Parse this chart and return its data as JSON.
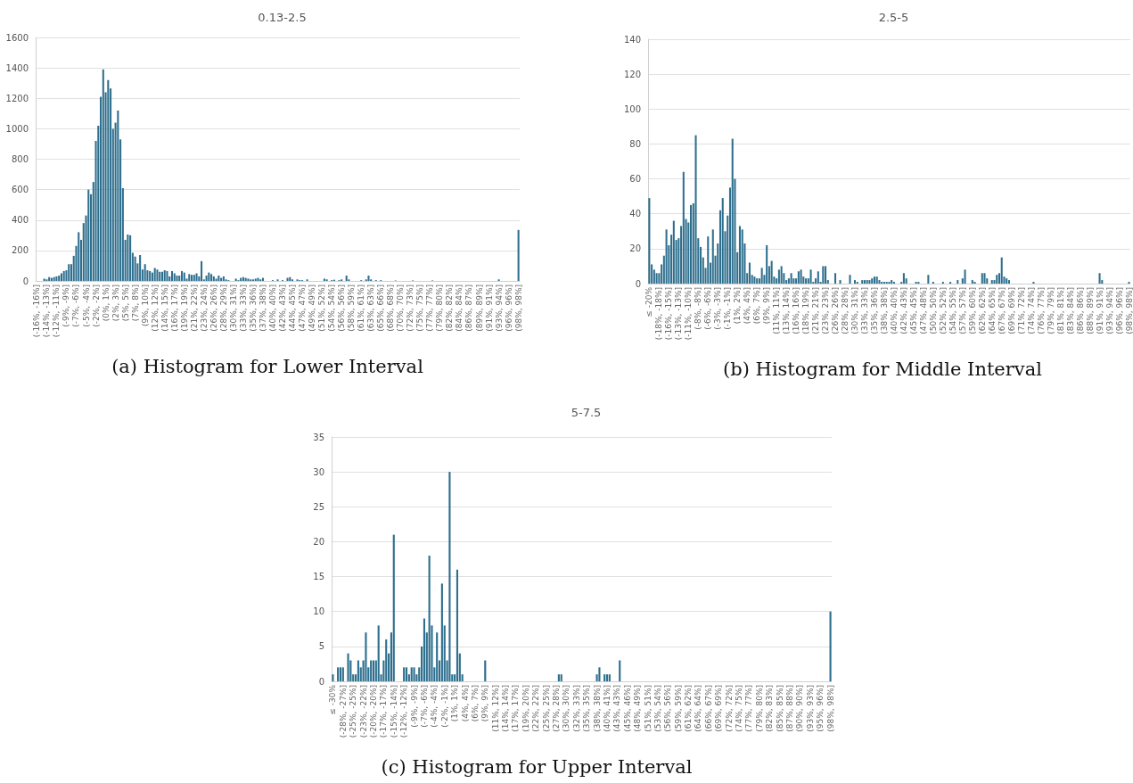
{
  "chart_data": [
    {
      "type": "bar",
      "title": "0.13-2.5",
      "annotations": [
        "(a) Histogram for Lower Interval"
      ],
      "color": "#2e6f8e",
      "ylim": [
        0,
        1600
      ],
      "yticks": [
        0,
        200,
        400,
        600,
        800,
        1000,
        1200,
        1400,
        1600
      ],
      "grid": "y",
      "categories": [
        "(-16%, -16%]",
        null,
        null,
        null,
        "(-14%, -13%]",
        null,
        null,
        null,
        "(-12%, -11%]",
        null,
        null,
        null,
        "(-9%, -9%]",
        null,
        null,
        null,
        "(-7%, -6%]",
        null,
        null,
        null,
        "(-5%, -4%]",
        null,
        null,
        null,
        "(-2%, -2%]",
        null,
        null,
        null,
        "(0%, 1%]",
        null,
        null,
        null,
        "(2%, 3%]",
        null,
        null,
        null,
        "(5%, 5%]",
        null,
        null,
        null,
        "(7%, 8%]",
        null,
        null,
        null,
        "(9%, 10%]",
        null,
        null,
        null,
        "(12%, 12%]",
        null,
        null,
        null,
        "(14%, 15%]",
        null,
        null,
        null,
        "(16%, 17%]",
        null,
        null,
        null,
        "(19%, 19%]",
        null,
        null,
        null,
        "(21%, 22%]",
        null,
        null,
        null,
        "(23%, 24%]",
        null,
        null,
        null,
        "(26%, 26%]",
        null,
        null,
        null,
        "(28%, 29%]",
        null,
        null,
        null,
        "(30%, 31%]",
        null,
        null,
        null,
        "(33%, 33%]",
        null,
        null,
        null,
        "(35%, 36%]",
        null,
        null,
        null,
        "(37%, 38%]",
        null,
        null,
        null,
        "(40%, 40%]",
        null,
        null,
        null,
        "(42%, 43%]",
        null,
        null,
        null,
        "(44%, 45%]",
        null,
        null,
        null,
        "(47%, 47%]",
        null,
        null,
        null,
        "(49%, 49%]",
        null,
        null,
        null,
        "(51%, 52%]",
        null,
        null,
        null,
        "(54%, 54%]",
        null,
        null,
        null,
        "(56%, 56%]",
        null,
        null,
        null,
        "(58%, 59%]",
        null,
        null,
        null,
        "(61%, 61%]",
        null,
        null,
        null,
        "(63%, 63%]",
        null,
        null,
        null,
        "(65%, 66%]",
        null,
        null,
        null,
        "(68%, 68%]",
        null,
        null,
        null,
        "(70%, 70%]",
        null,
        null,
        null,
        "(72%, 73%]",
        null,
        null,
        null,
        "(75%, 75%]",
        null,
        null,
        null,
        "(77%, 77%]",
        null,
        null,
        null,
        "(79%, 80%]",
        null,
        null,
        null,
        "(82%, 82%]",
        null,
        null,
        null,
        "(84%, 84%]",
        null,
        null,
        null,
        "(86%, 87%]",
        null,
        null,
        null,
        "(89%, 89%]",
        null,
        null,
        null,
        "(91%, 91%]",
        null,
        null,
        null,
        "(93%, 94%]",
        null,
        null,
        null,
        "(96%, 96%]",
        null,
        null,
        null,
        "(98%, 98%]"
      ],
      "values": [
        0,
        0,
        0,
        15,
        10,
        25,
        20,
        25,
        30,
        35,
        50,
        65,
        70,
        110,
        110,
        165,
        230,
        320,
        270,
        380,
        430,
        600,
        570,
        650,
        920,
        1020,
        1210,
        1390,
        1240,
        1320,
        1265,
        1000,
        1040,
        1120,
        930,
        610,
        270,
        305,
        300,
        185,
        160,
        115,
        170,
        75,
        110,
        70,
        65,
        55,
        85,
        75,
        60,
        60,
        70,
        65,
        30,
        65,
        50,
        35,
        35,
        65,
        55,
        15,
        45,
        40,
        40,
        50,
        30,
        130,
        10,
        35,
        55,
        45,
        30,
        15,
        35,
        20,
        30,
        10,
        5,
        0,
        0,
        15,
        5,
        20,
        25,
        20,
        15,
        10,
        10,
        15,
        20,
        10,
        20,
        0,
        0,
        0,
        5,
        0,
        10,
        0,
        5,
        0,
        20,
        25,
        10,
        0,
        10,
        5,
        5,
        0,
        10,
        0,
        0,
        0,
        0,
        0,
        0,
        15,
        10,
        0,
        5,
        8,
        0,
        5,
        10,
        0,
        35,
        10,
        0,
        0,
        0,
        0,
        5,
        0,
        10,
        35,
        10,
        0,
        5,
        0,
        5,
        0,
        0,
        0,
        0,
        0,
        3,
        0,
        0,
        0,
        0,
        0,
        0,
        3,
        0,
        0,
        0,
        0,
        0,
        0,
        0,
        3,
        0,
        0,
        0,
        0,
        0,
        0,
        0,
        0,
        0,
        0,
        0,
        0,
        0,
        0,
        0,
        0,
        0,
        0,
        0,
        0,
        0,
        0,
        0,
        0,
        0,
        0,
        10,
        0,
        0,
        0,
        0,
        0,
        0,
        0,
        335
      ]
    },
    {
      "type": "bar",
      "title": "2.5-5",
      "annotations": [
        "(b) Histogram for Middle Interval"
      ],
      "color": "#2e6f8e",
      "ylim": [
        0,
        140
      ],
      "yticks": [
        0,
        20,
        40,
        60,
        80,
        100,
        120,
        140
      ],
      "grid": "y",
      "categories": [
        "≤ -20%",
        null,
        null,
        null,
        "(-18%, -18%]",
        null,
        null,
        null,
        "(-16%, -15%]",
        null,
        null,
        null,
        "(-13%, -13%]",
        null,
        null,
        null,
        "(-11%, -10%]",
        null,
        null,
        null,
        "(-8%, -8%]",
        null,
        null,
        null,
        "(-6%, -6%]",
        null,
        null,
        null,
        "(-3%, -3%]",
        null,
        null,
        null,
        "(-1%, -1%]",
        null,
        null,
        null,
        "(1%, 2%]",
        null,
        null,
        null,
        "(4%, 4%]",
        null,
        null,
        null,
        "(6%, 7%]",
        null,
        null,
        null,
        "(9%, 9%]",
        null,
        null,
        null,
        "(11%, 11%]",
        null,
        null,
        null,
        "(13%, 14%]",
        null,
        null,
        null,
        "(16%, 16%]",
        null,
        null,
        null,
        "(18%, 19%]",
        null,
        null,
        null,
        "(21%, 21%]",
        null,
        null,
        null,
        "(23%, 23%]",
        null,
        null,
        null,
        "(26%, 26%]",
        null,
        null,
        null,
        "(28%, 28%]",
        null,
        null,
        null,
        "(30%, 31%]",
        null,
        null,
        null,
        "(33%, 33%]",
        null,
        null,
        null,
        "(35%, 36%]",
        null,
        null,
        null,
        "(38%, 38%]",
        null,
        null,
        null,
        "(40%, 40%]",
        null,
        null,
        null,
        "(42%, 43%]",
        null,
        null,
        null,
        "(45%, 45%]",
        null,
        null,
        null,
        "(47%, 48%]",
        null,
        null,
        null,
        "(50%, 50%]",
        null,
        null,
        null,
        "(52%, 52%]",
        null,
        null,
        null,
        "(54%, 55%]",
        null,
        null,
        null,
        "(57%, 57%]",
        null,
        null,
        null,
        "(59%, 60%]",
        null,
        null,
        null,
        "(62%, 62%]",
        null,
        null,
        null,
        "(64%, 65%]",
        null,
        null,
        null,
        "(67%, 67%]",
        null,
        null,
        null,
        "(69%, 69%]",
        null,
        null,
        null,
        "(71%, 72%]",
        null,
        null,
        null,
        "(74%, 74%]",
        null,
        null,
        null,
        "(76%, 77%]",
        null,
        null,
        null,
        "(79%, 79%]",
        null,
        null,
        null,
        "(81%, 81%]",
        null,
        null,
        null,
        "(83%, 84%]",
        null,
        null,
        null,
        "(86%, 86%]",
        null,
        null,
        null,
        "(88%, 89%]",
        null,
        null,
        null,
        "(91%, 91%]",
        null,
        null,
        null,
        "(93%, 94%]",
        null,
        null,
        null,
        "(96%, 96%]",
        null,
        null,
        null,
        "(98%, 98%]"
      ],
      "values": [
        49,
        11,
        8,
        6,
        6,
        11,
        16,
        31,
        22,
        28,
        36,
        25,
        26,
        33,
        64,
        37,
        35,
        45,
        46,
        85,
        26,
        21,
        15,
        9,
        27,
        12,
        31,
        16,
        23,
        42,
        49,
        30,
        39,
        55,
        83,
        60,
        18,
        33,
        31,
        23,
        6,
        12,
        5,
        4,
        3,
        3,
        9,
        5,
        22,
        10,
        13,
        4,
        3,
        8,
        10,
        6,
        2,
        3,
        6,
        3,
        3,
        7,
        8,
        4,
        3,
        3,
        8,
        1,
        3,
        7,
        1,
        10,
        10,
        2,
        0,
        0,
        6,
        0,
        2,
        0,
        0,
        0,
        5,
        0,
        2,
        1,
        0,
        2,
        2,
        2,
        2,
        3,
        4,
        4,
        2,
        1,
        1,
        1,
        1,
        2,
        1,
        0,
        0,
        1,
        6,
        3,
        0,
        0,
        0,
        1,
        1,
        0,
        0,
        0,
        5,
        0,
        1,
        0,
        0,
        0,
        1,
        0,
        0,
        1,
        0,
        0,
        2,
        0,
        3,
        8,
        0,
        0,
        2,
        1,
        0,
        0,
        6,
        6,
        3,
        0,
        2,
        2,
        5,
        6,
        15,
        4,
        3,
        2,
        0,
        0,
        0,
        0,
        0,
        0,
        0,
        0,
        0,
        1,
        0,
        0,
        0,
        0,
        0,
        0,
        0,
        0,
        0,
        0,
        0,
        0,
        0,
        0,
        0,
        0,
        0,
        0,
        0,
        0,
        0,
        0,
        0,
        0,
        0,
        0,
        6,
        2,
        0,
        0,
        0,
        0,
        0,
        0,
        0,
        0,
        0,
        0,
        1
      ]
    },
    {
      "type": "bar",
      "title": "5-7.5",
      "annotations": [
        "(c) Histogram for Upper Interval"
      ],
      "color": "#2e6f8e",
      "ylim": [
        0,
        35
      ],
      "yticks": [
        0,
        5,
        10,
        15,
        20,
        25,
        30,
        35
      ],
      "grid": "y",
      "categories": [
        "≤ -30%",
        null,
        null,
        null,
        "(-28%, -27%]",
        null,
        null,
        null,
        "(-25%, -25%]",
        null,
        null,
        null,
        "(-23%, -22%]",
        null,
        null,
        null,
        "(-20%, -20%]",
        null,
        null,
        null,
        "(-17%, -17%]",
        null,
        null,
        null,
        "(-15%, -14%]",
        null,
        null,
        null,
        "(-12%, -12%]",
        null,
        null,
        null,
        "(-9%, -9%]",
        null,
        null,
        null,
        "(-7%, -6%]",
        null,
        null,
        null,
        "(-4%, -4%]",
        null,
        null,
        null,
        "(-2%, -1%]",
        null,
        null,
        null,
        "(1%, 1%]",
        null,
        null,
        null,
        "(4%, 4%]",
        null,
        null,
        null,
        "(6%, 7%]",
        null,
        null,
        null,
        "(9%, 9%]",
        null,
        null,
        null,
        "(11%, 12%]",
        null,
        null,
        null,
        "(14%, 14%]",
        null,
        null,
        null,
        "(17%, 17%]",
        null,
        null,
        null,
        "(19%, 20%]",
        null,
        null,
        null,
        "(22%, 22%]",
        null,
        null,
        null,
        "(25%, 25%]",
        null,
        null,
        null,
        "(27%, 28%]",
        null,
        null,
        null,
        "(30%, 30%]",
        null,
        null,
        null,
        "(32%, 33%]",
        null,
        null,
        null,
        "(35%, 35%]",
        null,
        null,
        null,
        "(38%, 38%]",
        null,
        null,
        null,
        "(40%, 41%]",
        null,
        null,
        null,
        "(43%, 43%]",
        null,
        null,
        null,
        "(45%, 46%]",
        null,
        null,
        null,
        "(48%, 49%]",
        null,
        null,
        null,
        "(51%, 51%]",
        null,
        null,
        null,
        "(53%, 54%]",
        null,
        null,
        null,
        "(56%, 56%]",
        null,
        null,
        null,
        "(59%, 59%]",
        null,
        null,
        null,
        "(61%, 62%]",
        null,
        null,
        null,
        "(64%, 64%]",
        null,
        null,
        null,
        "(66%, 67%]",
        null,
        null,
        null,
        "(69%, 69%]",
        null,
        null,
        null,
        "(72%, 72%]",
        null,
        null,
        null,
        "(74%, 75%]",
        null,
        null,
        null,
        "(77%, 77%]",
        null,
        null,
        null,
        "(79%, 80%]",
        null,
        null,
        null,
        "(82%, 83%]",
        null,
        null,
        null,
        "(85%, 85%]",
        null,
        null,
        null,
        "(87%, 88%]",
        null,
        null,
        null,
        "(90%, 90%]",
        null,
        null,
        null,
        "(93%, 93%]",
        null,
        null,
        null,
        "(95%, 96%]",
        null,
        null,
        null,
        "(98%, 98%]"
      ],
      "values": [
        1,
        0,
        2,
        2,
        2,
        0,
        4,
        3,
        1,
        1,
        3,
        2,
        3,
        7,
        2,
        3,
        3,
        3,
        8,
        1,
        3,
        6,
        4,
        7,
        21,
        0,
        0,
        0,
        2,
        2,
        1,
        2,
        2,
        1,
        2,
        5,
        9,
        7,
        18,
        8,
        2,
        7,
        3,
        14,
        8,
        3,
        30,
        1,
        1,
        16,
        4,
        1,
        0,
        0,
        0,
        0,
        0,
        0,
        0,
        0,
        3,
        0,
        0,
        0,
        0,
        0,
        0,
        0,
        0,
        0,
        0,
        0,
        0,
        0,
        0,
        0,
        0,
        0,
        0,
        0,
        0,
        0,
        0,
        0,
        0,
        0,
        0,
        0,
        0,
        1,
        1,
        0,
        0,
        0,
        0,
        0,
        0,
        0,
        0,
        0,
        0,
        0,
        0,
        0,
        1,
        2,
        0,
        1,
        1,
        1,
        0,
        0,
        0,
        3,
        0,
        0,
        0,
        0,
        0,
        0,
        0,
        0,
        0,
        0,
        0,
        0,
        0,
        0,
        0,
        0,
        0,
        0,
        0,
        0,
        0,
        0,
        0,
        0,
        0,
        0,
        0,
        0,
        0,
        0,
        0,
        0,
        0,
        0,
        0,
        0,
        0,
        0,
        0,
        0,
        0,
        0,
        0,
        0,
        0,
        0,
        0,
        0,
        0,
        0,
        0,
        0,
        0,
        0,
        0,
        0,
        0,
        0,
        0,
        0,
        0,
        0,
        0,
        0,
        0,
        0,
        0,
        0,
        0,
        0,
        0,
        0,
        0,
        0,
        0,
        0,
        0,
        0,
        0,
        0,
        0,
        0,
        10
      ]
    }
  ]
}
